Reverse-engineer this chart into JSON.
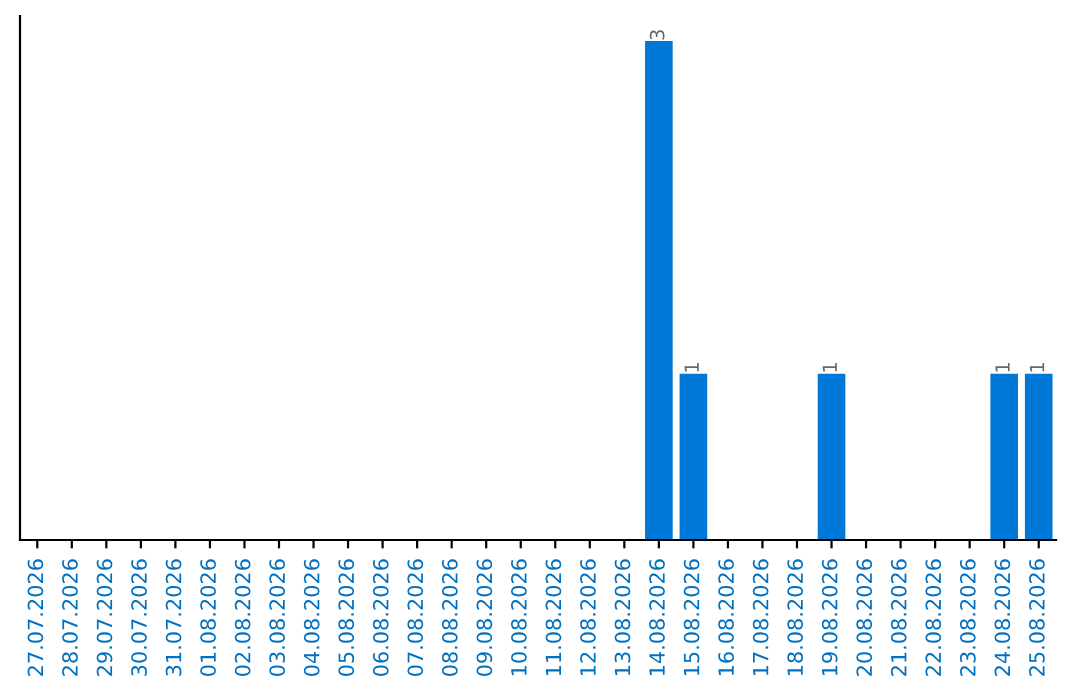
{
  "chart_data": {
    "type": "bar",
    "categories": [
      "27.07.2026",
      "28.07.2026",
      "29.07.2026",
      "30.07.2026",
      "31.07.2026",
      "01.08.2026",
      "02.08.2026",
      "03.08.2026",
      "04.08.2026",
      "05.08.2026",
      "06.08.2026",
      "07.08.2026",
      "08.08.2026",
      "09.08.2026",
      "10.08.2026",
      "11.08.2026",
      "12.08.2026",
      "13.08.2026",
      "14.08.2026",
      "15.08.2026",
      "16.08.2026",
      "17.08.2026",
      "18.08.2026",
      "19.08.2026",
      "20.08.2026",
      "21.08.2026",
      "22.08.2026",
      "23.08.2026",
      "24.08.2026",
      "25.08.2026"
    ],
    "values": [
      null,
      null,
      null,
      null,
      null,
      null,
      null,
      null,
      null,
      null,
      null,
      null,
      null,
      null,
      null,
      null,
      null,
      null,
      3,
      1,
      null,
      null,
      null,
      1,
      null,
      null,
      null,
      null,
      1,
      1
    ],
    "data_labels": true,
    "color": "#0078d7",
    "tick_labels": "x"
  }
}
